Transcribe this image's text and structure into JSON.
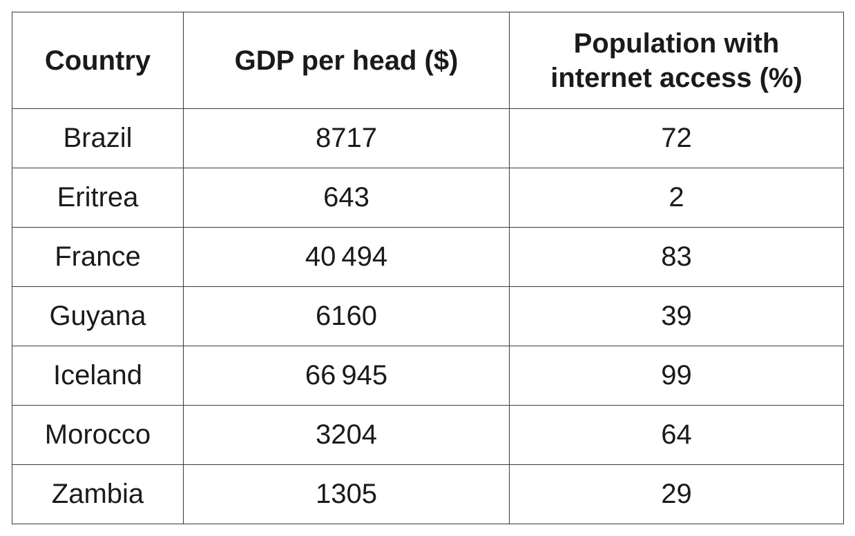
{
  "table": {
    "header": [
      "Country",
      "GDP per head ($)",
      "Population with internet access (%)"
    ],
    "rows": [
      [
        "Brazil",
        "8717",
        "72"
      ],
      [
        "Eritrea",
        "643",
        "2"
      ],
      [
        "France",
        "40 494",
        "83"
      ],
      [
        "Guyana",
        "6160",
        "39"
      ],
      [
        "Iceland",
        "66 945",
        "99"
      ],
      [
        "Morocco",
        "3204",
        "64"
      ],
      [
        "Zambia",
        "1305",
        "29"
      ]
    ]
  }
}
